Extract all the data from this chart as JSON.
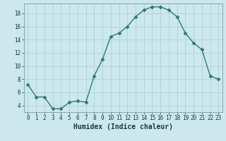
{
  "x": [
    0,
    1,
    2,
    3,
    4,
    5,
    6,
    7,
    8,
    9,
    10,
    11,
    12,
    13,
    14,
    15,
    16,
    17,
    18,
    19,
    20,
    21,
    22,
    23
  ],
  "y": [
    7.2,
    5.3,
    5.3,
    3.5,
    3.5,
    4.5,
    4.7,
    4.5,
    8.5,
    11.0,
    14.5,
    15.0,
    16.0,
    17.5,
    18.5,
    19.0,
    19.0,
    18.5,
    17.5,
    15.0,
    13.5,
    12.5,
    8.5,
    8.0
  ],
  "line_color": "#2d7b6e",
  "marker": "D",
  "marker_size": 2.5,
  "bg_color": "#cce8ec",
  "grid_color": "#aacdd4",
  "xlabel": "Humidex (Indice chaleur)",
  "ylim": [
    3.0,
    19.5
  ],
  "xlim": [
    -0.5,
    23.5
  ],
  "yticks": [
    4,
    6,
    8,
    10,
    12,
    14,
    16,
    18
  ],
  "xticks": [
    0,
    1,
    2,
    3,
    4,
    5,
    6,
    7,
    8,
    9,
    10,
    11,
    12,
    13,
    14,
    15,
    16,
    17,
    18,
    19,
    20,
    21,
    22,
    23
  ],
  "xtick_labels": [
    "0",
    "1",
    "2",
    "3",
    "4",
    "5",
    "6",
    "7",
    "8",
    "9",
    "10",
    "11",
    "12",
    "13",
    "14",
    "15",
    "16",
    "17",
    "18",
    "19",
    "20",
    "21",
    "22",
    "23"
  ],
  "line_width": 1.0,
  "tick_fontsize": 5.5,
  "xlabel_fontsize": 7.0
}
